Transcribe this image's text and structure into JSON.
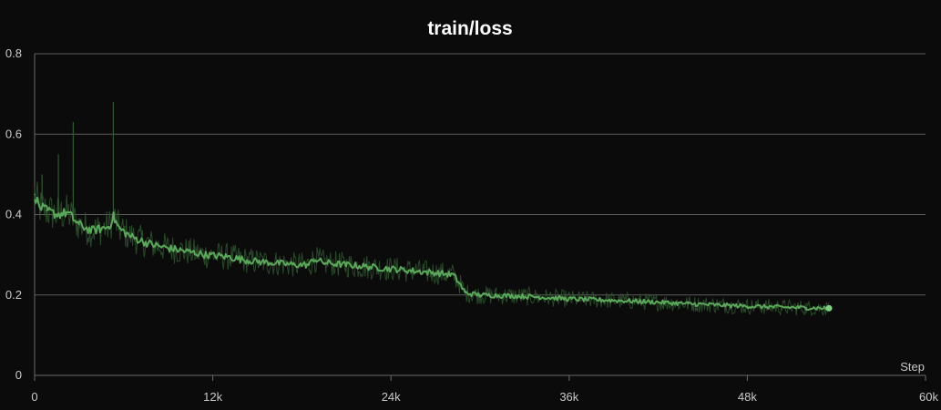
{
  "chart_data": {
    "type": "line",
    "title": "train/loss",
    "xlabel": "Step",
    "ylabel": "",
    "xlim": [
      0,
      60000
    ],
    "ylim": [
      0,
      0.8
    ],
    "x_ticks": [
      {
        "value": 0,
        "label": "0"
      },
      {
        "value": 12000,
        "label": "12k"
      },
      {
        "value": 24000,
        "label": "24k"
      },
      {
        "value": 36000,
        "label": "36k"
      },
      {
        "value": 48000,
        "label": "48k"
      },
      {
        "value": 60000,
        "label": "60k"
      }
    ],
    "y_ticks": [
      {
        "value": 0,
        "label": "0"
      },
      {
        "value": 0.2,
        "label": "0.2"
      },
      {
        "value": 0.4,
        "label": "0.4"
      },
      {
        "value": 0.6,
        "label": "0.6"
      },
      {
        "value": 0.8,
        "label": "0.8"
      }
    ],
    "grid": true,
    "colors": {
      "series": "#5aa85a",
      "series_light": "#7fd07f",
      "raw": "#2f5a2f"
    },
    "series": [
      {
        "x": [
          0,
          300,
          800,
          1500,
          2200,
          3000,
          3800,
          4500,
          5000,
          5300,
          5700,
          6500,
          7500,
          8500,
          10000,
          11500,
          13000,
          14500,
          16000,
          17500,
          18500,
          18800,
          19500,
          21000,
          22500,
          24000,
          25500,
          27000,
          28200,
          28600,
          29000,
          30000,
          32000,
          34000,
          36000,
          38000,
          40000,
          42000,
          44000,
          46000,
          48000,
          50000,
          52000,
          53500
        ],
        "values": [
          0.45,
          0.42,
          0.41,
          0.4,
          0.405,
          0.375,
          0.36,
          0.365,
          0.37,
          0.395,
          0.365,
          0.345,
          0.33,
          0.32,
          0.31,
          0.3,
          0.295,
          0.285,
          0.28,
          0.275,
          0.275,
          0.29,
          0.28,
          0.275,
          0.27,
          0.265,
          0.26,
          0.255,
          0.25,
          0.23,
          0.205,
          0.2,
          0.198,
          0.195,
          0.19,
          0.188,
          0.185,
          0.182,
          0.178,
          0.175,
          0.172,
          0.17,
          0.168,
          0.167
        ]
      }
    ],
    "raw_spikes": [
      {
        "x": 500,
        "value": 0.5
      },
      {
        "x": 1600,
        "value": 0.55
      },
      {
        "x": 2600,
        "value": 0.63
      },
      {
        "x": 5300,
        "value": 0.68
      }
    ]
  }
}
